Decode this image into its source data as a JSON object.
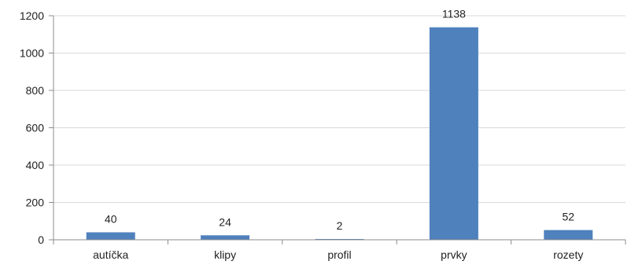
{
  "chart_data": {
    "type": "bar",
    "categories": [
      "autíčka",
      "klipy",
      "profil",
      "prvky",
      "rozety"
    ],
    "values": [
      40,
      24,
      2,
      1138,
      52
    ],
    "data_labels": [
      "40",
      "24",
      "2",
      "1138",
      "52"
    ],
    "ylim": [
      0,
      1200
    ],
    "yticks": [
      0,
      200,
      400,
      600,
      800,
      1000,
      1200
    ],
    "ytick_labels": [
      "0",
      "200",
      "400",
      "600",
      "800",
      "1000",
      "1200"
    ],
    "title": "",
    "xlabel": "",
    "ylabel": "",
    "grid": true,
    "legend": "none",
    "colors": {
      "bar": "#4f81bd",
      "grid": "#d9d9d9",
      "axis": "#8c8c8c",
      "text": "#222222"
    }
  }
}
